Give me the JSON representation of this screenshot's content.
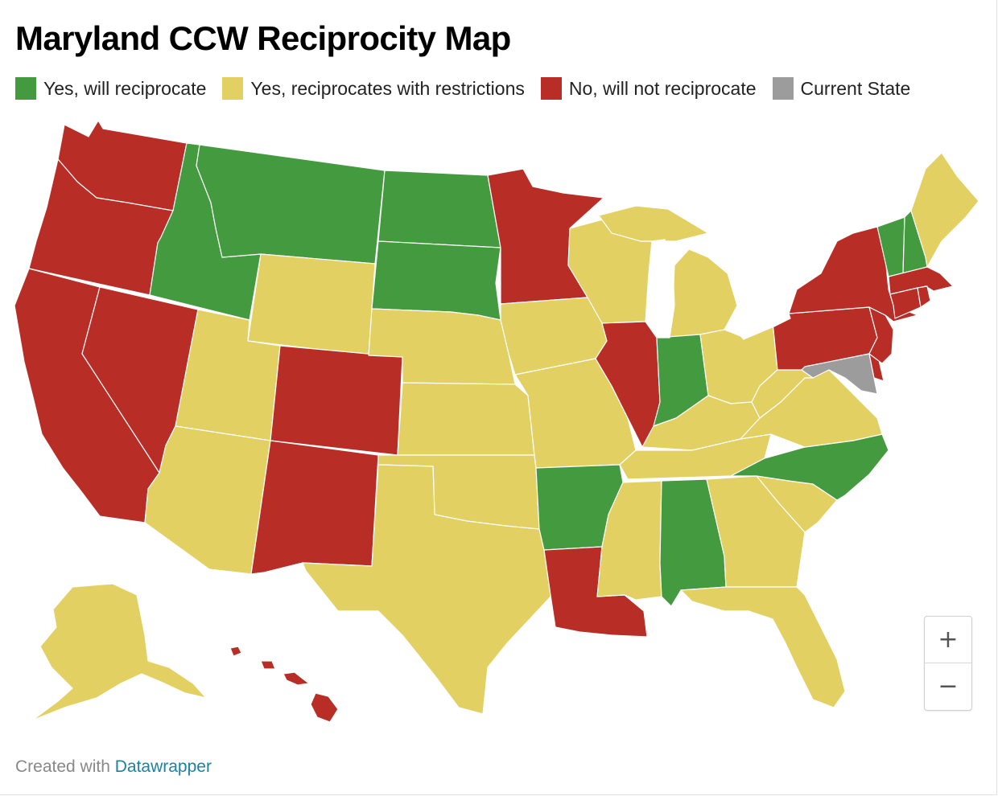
{
  "title": "Maryland CCW Reciprocity Map",
  "legend": [
    {
      "label": "Yes, will reciprocate",
      "color": "#449a3f"
    },
    {
      "label": "Yes, reciprocates with restrictions",
      "color": "#e2d063"
    },
    {
      "label": "No, will not reciprocate",
      "color": "#b82e27"
    },
    {
      "label": "Current State",
      "color": "#9c9c9c"
    }
  ],
  "states": {
    "WA": "no",
    "OR": "no",
    "CA": "no",
    "NV": "no",
    "ID": "yes",
    "MT": "yes",
    "WY": "restricted",
    "UT": "restricted",
    "AZ": "restricted",
    "CO": "no",
    "NM": "no",
    "ND": "yes",
    "SD": "yes",
    "NE": "restricted",
    "KS": "restricted",
    "OK": "restricted",
    "TX": "restricted",
    "MN": "no",
    "IA": "restricted",
    "MO": "restricted",
    "AR": "yes",
    "LA": "no",
    "WI": "restricted",
    "IL": "no",
    "MI": "restricted",
    "IN": "yes",
    "OH": "restricted",
    "KY": "restricted",
    "TN": "restricted",
    "MS": "restricted",
    "AL": "yes",
    "GA": "restricted",
    "FL": "restricted",
    "SC": "restricted",
    "NC": "yes",
    "VA": "restricted",
    "WV": "restricted",
    "PA": "no",
    "NY": "no",
    "NJ": "no",
    "DE": "no",
    "MD": "current",
    "VT": "yes",
    "NH": "yes",
    "ME": "restricted",
    "MA": "no",
    "CT": "no",
    "RI": "no",
    "AK": "restricted",
    "HI": "no"
  },
  "zoom": {
    "in_label": "+",
    "out_label": "−"
  },
  "credit": {
    "prefix": "Created with ",
    "link": "Datawrapper"
  }
}
